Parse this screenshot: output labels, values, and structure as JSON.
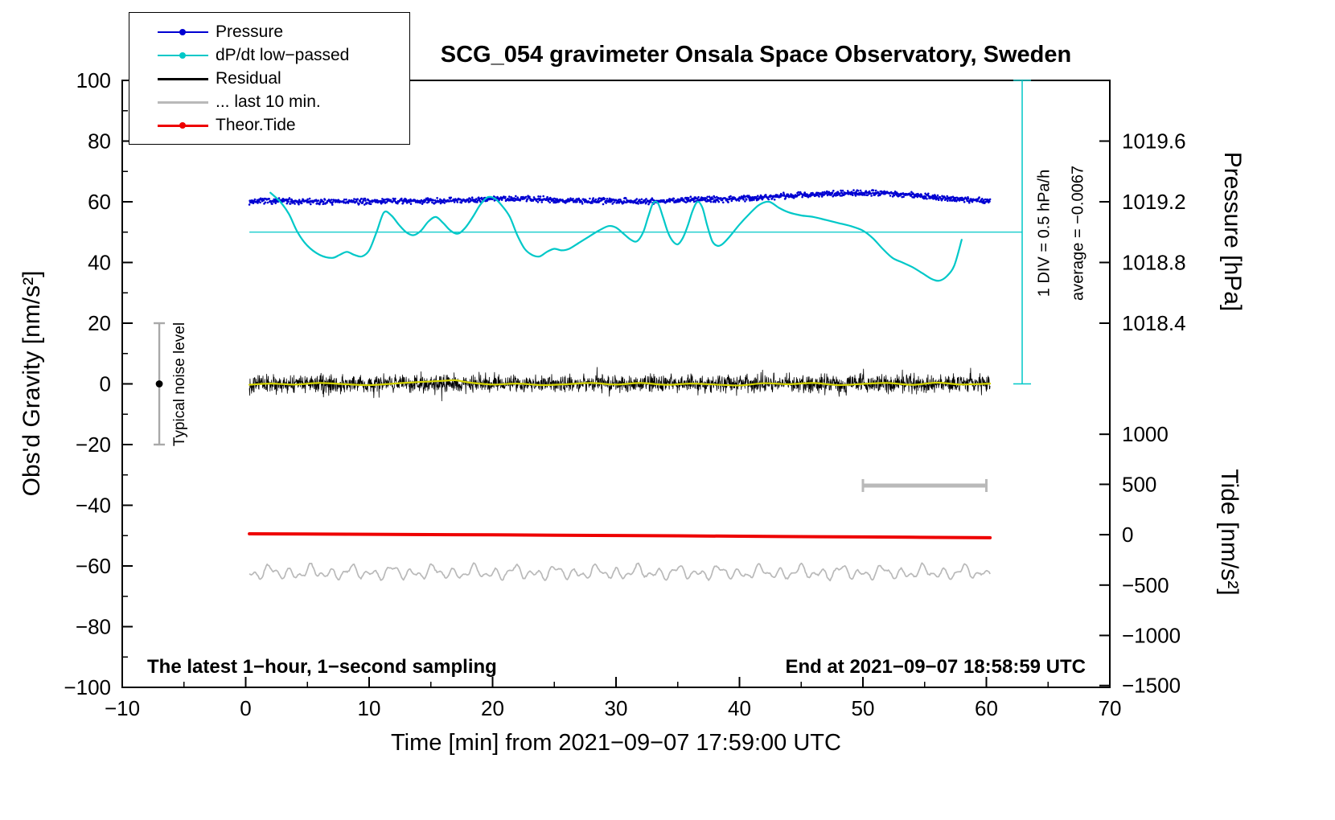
{
  "figure": {
    "title": "SCG_054 gravimeter Onsala Space Observatory, Sweden",
    "bottom_left_note": "The latest 1−hour, 1−second sampling",
    "bottom_right_note": "End at 2021−09−07 18:58:59 UTC"
  },
  "legend": {
    "items": [
      {
        "label": "Pressure",
        "color": "#0000d2",
        "marker": true,
        "line_width": 2
      },
      {
        "label": "dP/dt low−passed",
        "color": "#00c8c8",
        "marker": true,
        "line_width": 2
      },
      {
        "label": "Residual",
        "color": "#000000",
        "marker": false,
        "line_width": 3
      },
      {
        "label": "... last 10 min.",
        "color": "#b9b9b9",
        "marker": false,
        "line_width": 3
      },
      {
        "label": "Theor.Tide",
        "color": "#ee0000",
        "marker": true,
        "line_width": 3
      }
    ]
  },
  "chart_data": {
    "type": "line",
    "title": "SCG_054 gravimeter Onsala Space Observatory, Sweden",
    "xlabel": "Time [min] from 2021−09−07 17:59:00 UTC",
    "xlim": [
      -10,
      70
    ],
    "ylim": [
      -100,
      100
    ],
    "axes": {
      "x_ticks": [
        {
          "v": -10,
          "t": "−10"
        },
        {
          "v": 0,
          "t": "0"
        },
        {
          "v": 10,
          "t": "10"
        },
        {
          "v": 20,
          "t": "20"
        },
        {
          "v": 30,
          "t": "30"
        },
        {
          "v": 40,
          "t": "40"
        },
        {
          "v": 50,
          "t": "50"
        },
        {
          "v": 60,
          "t": "60"
        },
        {
          "v": 70,
          "t": "70"
        }
      ],
      "x_minor_step": 5,
      "y_left_label": "Obs'd Gravity [nm/s²]",
      "y_left_ticks": [
        {
          "v": -100,
          "t": "−100"
        },
        {
          "v": -80,
          "t": "−80"
        },
        {
          "v": -60,
          "t": "−60"
        },
        {
          "v": -40,
          "t": "−40"
        },
        {
          "v": -20,
          "t": "−20"
        },
        {
          "v": 0,
          "t": "0"
        },
        {
          "v": 20,
          "t": "20"
        },
        {
          "v": 40,
          "t": "40"
        },
        {
          "v": 60,
          "t": "60"
        },
        {
          "v": 80,
          "t": "80"
        },
        {
          "v": 100,
          "t": "100"
        }
      ],
      "y_left_minor_step": 10,
      "pressure_label": "Pressure [hPa]",
      "pressure_ticks": [
        {
          "g": 80,
          "t": "1019.6"
        },
        {
          "g": 60,
          "t": "1019.2"
        },
        {
          "g": 40,
          "t": "1018.8"
        },
        {
          "g": 20,
          "t": "1018.4"
        }
      ],
      "tide_label": "Tide [nm/s²]",
      "tide_ticks": [
        {
          "g": -16.6,
          "t": "1000"
        },
        {
          "g": -33.1,
          "t": "500"
        },
        {
          "g": -49.7,
          "t": "0"
        },
        {
          "g": -66.3,
          "t": "−500"
        },
        {
          "g": -82.9,
          "t": "−1000"
        },
        {
          "g": -99.4,
          "t": "−1500"
        }
      ]
    },
    "series": [
      {
        "name": "... last 10 min.",
        "style": "wavy",
        "color": "#b9b9b9",
        "x_range": [
          0.3,
          60.3
        ],
        "step": 0.08,
        "baseline": -62.2,
        "seed": 21,
        "jitter": 0.5,
        "components": [
          [
            1.3,
            3.8,
            0.5
          ],
          [
            1.0,
            7.1,
            2.0
          ],
          [
            0.8,
            1.9,
            4.0
          ]
        ]
      },
      {
        "name": "Theor.Tide",
        "style": "smooth",
        "color": "#ee0000",
        "width": 4,
        "points": [
          [
            0.3,
            -49.4
          ],
          [
            10,
            -49.55
          ],
          [
            20,
            -49.75
          ],
          [
            30,
            -49.95
          ],
          [
            40,
            -50.2
          ],
          [
            50,
            -50.45
          ],
          [
            60.3,
            -50.7
          ]
        ]
      },
      {
        "name": "Residual",
        "style": "noise-band",
        "color": "#000000",
        "x_range": [
          0.3,
          60.3
        ],
        "n_points": 2400,
        "seed": 13,
        "baseline": 0,
        "amp": 2.8
      },
      {
        "name": "Residual smoothed",
        "style": "smooth",
        "color": "#d4d400",
        "width": 2.2,
        "points": [
          [
            0.3,
            -0.3
          ],
          [
            2,
            0.1
          ],
          [
            4,
            -0.2
          ],
          [
            6,
            0.3
          ],
          [
            8,
            -0.1
          ],
          [
            10,
            -0.4
          ],
          [
            12,
            0.1
          ],
          [
            14,
            0.6
          ],
          [
            16,
            1.0
          ],
          [
            17,
            1.2
          ],
          [
            18,
            0.5
          ],
          [
            20,
            -0.2
          ],
          [
            22,
            0.1
          ],
          [
            24,
            -0.4
          ],
          [
            26,
            -0.1
          ],
          [
            28,
            0.3
          ],
          [
            30,
            -0.2
          ],
          [
            32,
            0.3
          ],
          [
            34,
            -0.3
          ],
          [
            36,
            0.1
          ],
          [
            38,
            -0.2
          ],
          [
            40,
            -0.5
          ],
          [
            42,
            0.2
          ],
          [
            44,
            -0.1
          ],
          [
            46,
            0.3
          ],
          [
            48,
            -0.4
          ],
          [
            50,
            0.0
          ],
          [
            52,
            0.3
          ],
          [
            54,
            -0.3
          ],
          [
            56,
            0.4
          ],
          [
            58,
            -0.2
          ],
          [
            60.3,
            0.1
          ]
        ]
      },
      {
        "name": "Pressure",
        "style": "noisy-dots",
        "color": "#0000d2",
        "x_range": [
          0.3,
          60.3
        ],
        "n_points": 1500,
        "seed": 7,
        "noise_amp": 0.55,
        "baseline": [
          [
            0.3,
            60.1
          ],
          [
            3,
            60.3
          ],
          [
            6,
            60.0
          ],
          [
            9,
            60.1
          ],
          [
            12,
            60.2
          ],
          [
            15,
            60.3
          ],
          [
            18,
            60.6
          ],
          [
            20,
            61.0
          ],
          [
            22,
            61.2
          ],
          [
            24,
            60.8
          ],
          [
            26,
            60.4
          ],
          [
            28,
            60.2
          ],
          [
            30,
            60.4
          ],
          [
            32,
            60.1
          ],
          [
            34,
            60.3
          ],
          [
            36,
            60.7
          ],
          [
            38,
            60.8
          ],
          [
            40,
            61.0
          ],
          [
            42,
            61.5
          ],
          [
            44,
            62.0
          ],
          [
            46,
            62.4
          ],
          [
            48,
            62.8
          ],
          [
            50,
            63.0
          ],
          [
            52,
            62.8
          ],
          [
            54,
            62.3
          ],
          [
            56,
            61.5
          ],
          [
            58,
            60.7
          ],
          [
            60.3,
            60.4
          ]
        ]
      },
      {
        "name": "dP/dt low−passed",
        "style": "smooth",
        "color": "#00c8c8",
        "width": 2.2,
        "reference_line": {
          "y": 50,
          "x_start": 0.3,
          "x_end": 62.9
        },
        "points": [
          [
            2,
            63
          ],
          [
            2.8,
            60
          ],
          [
            3.5,
            56
          ],
          [
            4.2,
            50
          ],
          [
            5,
            45.5
          ],
          [
            6,
            42.5
          ],
          [
            7,
            41.5
          ],
          [
            7.6,
            42.5
          ],
          [
            8.2,
            43.5
          ],
          [
            8.8,
            42.5
          ],
          [
            9.4,
            42
          ],
          [
            10,
            44
          ],
          [
            10.6,
            50
          ],
          [
            11.2,
            56.5
          ],
          [
            11.8,
            55.5
          ],
          [
            12.4,
            52.5
          ],
          [
            13,
            50
          ],
          [
            13.6,
            49
          ],
          [
            14.2,
            50.5
          ],
          [
            14.8,
            53.5
          ],
          [
            15.4,
            55
          ],
          [
            16,
            53
          ],
          [
            16.6,
            50.5
          ],
          [
            17.2,
            49.5
          ],
          [
            17.8,
            51.5
          ],
          [
            18.4,
            55
          ],
          [
            19,
            59
          ],
          [
            19.6,
            61.5
          ],
          [
            20.2,
            61
          ],
          [
            20.8,
            58.5
          ],
          [
            21.4,
            55
          ],
          [
            22,
            49
          ],
          [
            22.6,
            44.5
          ],
          [
            23.2,
            42.5
          ],
          [
            23.8,
            42
          ],
          [
            24.4,
            43.5
          ],
          [
            25,
            44.5
          ],
          [
            25.6,
            44
          ],
          [
            26.2,
            44.5
          ],
          [
            27,
            46.5
          ],
          [
            27.8,
            48.5
          ],
          [
            28.6,
            50.5
          ],
          [
            29.4,
            52
          ],
          [
            30,
            51.5
          ],
          [
            30.6,
            49.5
          ],
          [
            31.2,
            47.5
          ],
          [
            31.7,
            47
          ],
          [
            32.2,
            50
          ],
          [
            32.6,
            55
          ],
          [
            33,
            59.5
          ],
          [
            33.4,
            59.5
          ],
          [
            33.8,
            55
          ],
          [
            34.2,
            50
          ],
          [
            34.6,
            47
          ],
          [
            35,
            46
          ],
          [
            35.4,
            48
          ],
          [
            35.8,
            52
          ],
          [
            36.2,
            57
          ],
          [
            36.6,
            60
          ],
          [
            37,
            58
          ],
          [
            37.4,
            52
          ],
          [
            37.8,
            47
          ],
          [
            38.2,
            45.5
          ],
          [
            38.6,
            46
          ],
          [
            39.2,
            48.5
          ],
          [
            40,
            52.5
          ],
          [
            40.8,
            56
          ],
          [
            41.6,
            59
          ],
          [
            42.4,
            60
          ],
          [
            43.2,
            58
          ],
          [
            44,
            56.5
          ],
          [
            45,
            55.5
          ],
          [
            46,
            55
          ],
          [
            47,
            54
          ],
          [
            48,
            53
          ],
          [
            49,
            52
          ],
          [
            50,
            50.5
          ],
          [
            50.8,
            48
          ],
          [
            51.6,
            44.5
          ],
          [
            52.4,
            41.5
          ],
          [
            53.2,
            40
          ],
          [
            54,
            38.5
          ],
          [
            54.8,
            36.5
          ],
          [
            55.6,
            34.5
          ],
          [
            56.2,
            34
          ],
          [
            56.8,
            35.5
          ],
          [
            57.4,
            39
          ],
          [
            58,
            47.5
          ]
        ]
      }
    ],
    "annotations": {
      "noise_bar": {
        "label": "Typical noise level",
        "x": -7,
        "y_top": 20,
        "y_bottom": -20,
        "dot_y": 0
      },
      "div_scale": {
        "line1": "1 DIV = 0.5 hPa/h",
        "line2": "average = −0.0067",
        "x": 62.9,
        "y_top": 100,
        "y_bottom": 0
      },
      "scale_bar": {
        "x_start": 50,
        "x_end": 60,
        "y": -33.5
      }
    }
  }
}
